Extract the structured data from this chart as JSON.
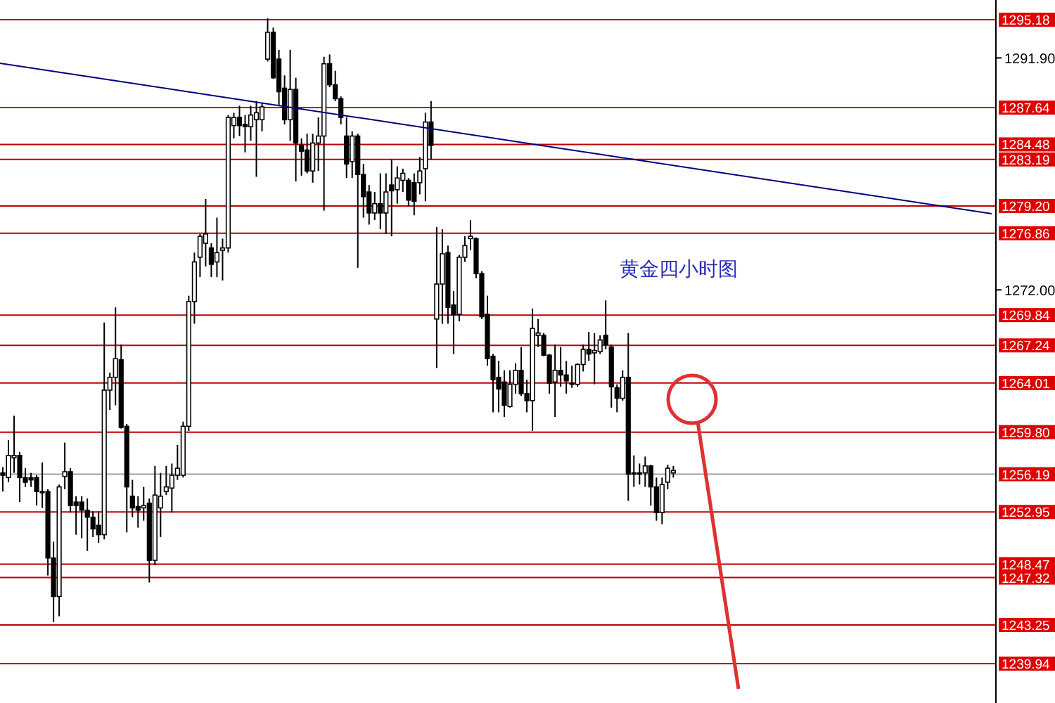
{
  "chart_data": {
    "type": "candlestick",
    "title": "黄金四小时图",
    "categories": [
      null,
      null,
      null,
      null,
      null,
      null,
      null,
      null,
      null,
      null,
      null,
      null,
      null,
      null,
      null,
      null,
      null,
      null,
      null,
      null,
      null,
      null,
      null,
      null,
      null,
      null,
      null,
      null,
      null,
      null,
      null,
      null,
      null,
      null,
      null,
      null,
      null,
      null,
      null,
      null,
      null,
      null,
      null,
      null,
      null,
      null,
      null,
      null,
      null,
      null,
      null,
      null,
      null,
      null,
      null,
      null,
      null,
      null,
      null,
      null,
      null,
      null,
      null,
      null,
      null,
      null,
      null,
      null,
      null,
      null,
      null,
      null,
      null,
      null,
      null,
      null,
      null,
      null,
      null,
      null,
      null,
      null,
      null,
      null,
      null,
      null,
      null,
      null,
      null,
      null,
      null,
      null,
      null,
      null,
      null,
      null,
      null,
      null,
      null,
      null,
      null,
      null,
      null,
      null,
      null,
      null,
      null,
      null,
      null,
      null,
      null,
      null,
      null,
      null,
      null,
      null,
      null,
      null,
      null,
      null,
      null,
      null,
      null,
      null,
      null,
      null,
      null,
      null,
      null,
      null,
      null,
      null,
      null,
      null,
      null,
      null,
      null,
      null,
      null,
      null,
      null,
      null,
      null,
      null,
      null,
      null,
      null,
      null,
      null,
      null,
      null,
      null,
      null,
      null,
      null,
      null,
      null,
      null,
      null,
      null,
      null,
      null,
      null,
      null,
      null,
      null,
      null,
      null,
      null,
      null,
      null,
      null,
      null,
      null,
      null,
      null
    ],
    "ohlc": [
      [
        1256.3,
        1256.8,
        1254.7,
        1256.1
      ],
      [
        1255.9,
        1259.1,
        1255.5,
        1257.8
      ],
      [
        1257.6,
        1261.2,
        1256.3,
        1257.8
      ],
      [
        1257.8,
        1258.1,
        1253.8,
        1255.9
      ],
      [
        1255.9,
        1256.7,
        1255.1,
        1255.5
      ],
      [
        1255.9,
        1256.3,
        1255.1,
        1255.7
      ],
      [
        1255.9,
        1256.1,
        1253.5,
        1254.7
      ],
      [
        1254.7,
        1257.2,
        1253.3,
        1254.6
      ],
      [
        1254.7,
        1254.9,
        1247.5,
        1249.0
      ],
      [
        1249.0,
        1250.4,
        1243.5,
        1245.7
      ],
      [
        1245.7,
        1255.3,
        1244.0,
        1255.1
      ],
      [
        1256.0,
        1258.9,
        1254.9,
        1256.4
      ],
      [
        1256.4,
        1256.7,
        1252.9,
        1253.5
      ],
      [
        1253.8,
        1254.3,
        1251.0,
        1253.5
      ],
      [
        1253.8,
        1254.3,
        1250.7,
        1253.1
      ],
      [
        1253.1,
        1254.1,
        1249.6,
        1252.5
      ],
      [
        1252.5,
        1253.0,
        1250.8,
        1251.5
      ],
      [
        1251.8,
        1253.0,
        1250.3,
        1251.0
      ],
      [
        1251.0,
        1269.2,
        1250.6,
        1263.4
      ],
      [
        1263.4,
        1264.9,
        1261.7,
        1264.5
      ],
      [
        1264.5,
        1270.5,
        1262.1,
        1266.1
      ],
      [
        1266.0,
        1267.3,
        1260.1,
        1260.2
      ],
      [
        1260.3,
        1260.5,
        1251.2,
        1255.1
      ],
      [
        1254.3,
        1255.7,
        1252.5,
        1253.3
      ],
      [
        1253.4,
        1254.3,
        1251.6,
        1253.1
      ],
      [
        1253.3,
        1255.1,
        1252.2,
        1253.5
      ],
      [
        1253.7,
        1254.1,
        1246.9,
        1248.8
      ],
      [
        1248.8,
        1256.9,
        1248.4,
        1254.4
      ],
      [
        1253.3,
        1256.3,
        1250.8,
        1254.3
      ],
      [
        1254.7,
        1256.9,
        1254.4,
        1255.1
      ],
      [
        1255.0,
        1257.1,
        1252.9,
        1256.1
      ],
      [
        1256.1,
        1258.7,
        1255.7,
        1256.7
      ],
      [
        1256.1,
        1260.7,
        1255.9,
        1260.3
      ],
      [
        1260.3,
        1271.5,
        1259.9,
        1271.0
      ],
      [
        1271.0,
        1275.2,
        1269.1,
        1274.4
      ],
      [
        1274.8,
        1276.8,
        1273.1,
        1276.6
      ],
      [
        1276.0,
        1279.8,
        1274.0,
        1276.8
      ],
      [
        1275.6,
        1276.0,
        1273.1,
        1274.2
      ],
      [
        1274.4,
        1278.2,
        1273.1,
        1275.2
      ],
      [
        1275.4,
        1276.4,
        1272.8,
        1275.6
      ],
      [
        1275.6,
        1287.0,
        1275.2,
        1286.8
      ],
      [
        1286.1,
        1287.2,
        1285.0,
        1286.8
      ],
      [
        1286.8,
        1287.8,
        1285.2,
        1286.1
      ],
      [
        1286.2,
        1287.0,
        1283.8,
        1286.0
      ],
      [
        1286.0,
        1287.8,
        1284.8,
        1287.0
      ],
      [
        1286.6,
        1288.2,
        1281.7,
        1287.2
      ],
      [
        1286.6,
        1288.0,
        1285.6,
        1287.7
      ],
      [
        1291.8,
        1295.3,
        1291.6,
        1294.1
      ],
      [
        1294.1,
        1294.5,
        1290.1,
        1290.2
      ],
      [
        1291.8,
        1292.6,
        1287.8,
        1289.0
      ],
      [
        1289.3,
        1290.4,
        1286.2,
        1286.6
      ],
      [
        1286.6,
        1292.6,
        1284.8,
        1289.2
      ],
      [
        1289.2,
        1290.2,
        1281.3,
        1284.6
      ],
      [
        1284.4,
        1285.0,
        1281.8,
        1283.9
      ],
      [
        1284.0,
        1285.4,
        1282.0,
        1282.2
      ],
      [
        1282.2,
        1285.4,
        1281.2,
        1284.6
      ],
      [
        1284.6,
        1286.8,
        1282.2,
        1285.2
      ],
      [
        1285.2,
        1292.0,
        1278.8,
        1291.4
      ],
      [
        1291.4,
        1292.2,
        1289.4,
        1289.6
      ],
      [
        1289.6,
        1290.8,
        1288.2,
        1288.4
      ],
      [
        1288.4,
        1288.6,
        1286.2,
        1286.8
      ],
      [
        1285.2,
        1286.8,
        1281.6,
        1282.8
      ],
      [
        1283.0,
        1285.6,
        1281.6,
        1285.2
      ],
      [
        1285.2,
        1285.4,
        1273.9,
        1281.9
      ],
      [
        1281.9,
        1282.8,
        1278.2,
        1280.0
      ],
      [
        1280.4,
        1281.0,
        1277.6,
        1278.6
      ],
      [
        1278.6,
        1280.4,
        1278.0,
        1279.4
      ],
      [
        1279.4,
        1282.0,
        1277.2,
        1278.6
      ],
      [
        1278.6,
        1282.0,
        1276.8,
        1280.4
      ],
      [
        1281.0,
        1283.2,
        1276.6,
        1280.5
      ],
      [
        1280.6,
        1282.6,
        1279.4,
        1281.6
      ],
      [
        1281.4,
        1282.4,
        1280.4,
        1282.0
      ],
      [
        1281.4,
        1281.6,
        1279.2,
        1279.7
      ],
      [
        1281.2,
        1282.0,
        1278.4,
        1279.6
      ],
      [
        1281.2,
        1283.4,
        1280.2,
        1282.2
      ],
      [
        1282.4,
        1287.2,
        1279.6,
        1286.4
      ],
      [
        1286.4,
        1288.2,
        1283.2,
        1284.4
      ],
      [
        1269.5,
        1277.4,
        1265.3,
        1272.5
      ],
      [
        1272.5,
        1277.2,
        1269.1,
        1275.1
      ],
      [
        1275.2,
        1275.8,
        1269.1,
        1270.5
      ],
      [
        1270.7,
        1271.9,
        1266.5,
        1269.9
      ],
      [
        1269.9,
        1275.0,
        1269.3,
        1274.8
      ],
      [
        1274.8,
        1276.6,
        1274.4,
        1275.8
      ],
      [
        1276.4,
        1278.0,
        1275.4,
        1276.6
      ],
      [
        1276.4,
        1276.5,
        1273.0,
        1273.4
      ],
      [
        1273.4,
        1273.6,
        1269.5,
        1269.7
      ],
      [
        1269.9,
        1271.5,
        1265.5,
        1266.1
      ],
      [
        1266.3,
        1266.5,
        1261.5,
        1264.3
      ],
      [
        1264.5,
        1265.9,
        1261.5,
        1263.5
      ],
      [
        1264.1,
        1265.1,
        1261.1,
        1262.1
      ],
      [
        1262.0,
        1265.1,
        1261.9,
        1263.9
      ],
      [
        1263.9,
        1265.7,
        1263.1,
        1265.1
      ],
      [
        1265.1,
        1267.1,
        1262.9,
        1263.1
      ],
      [
        1263.1,
        1264.3,
        1261.5,
        1262.5
      ],
      [
        1262.5,
        1270.4,
        1259.9,
        1268.7
      ],
      [
        1268.1,
        1269.5,
        1267.1,
        1268.3
      ],
      [
        1268.1,
        1268.3,
        1266.3,
        1266.4
      ],
      [
        1266.4,
        1266.5,
        1263.1,
        1264.0
      ],
      [
        1264.1,
        1267.3,
        1261.1,
        1265.1
      ],
      [
        1265.1,
        1267.1,
        1263.7,
        1264.7
      ],
      [
        1264.7,
        1265.9,
        1263.1,
        1264.2
      ],
      [
        1263.9,
        1265.5,
        1263.6,
        1264.0
      ],
      [
        1263.9,
        1265.7,
        1263.7,
        1265.6
      ],
      [
        1265.6,
        1267.3,
        1265.0,
        1266.9
      ],
      [
        1266.9,
        1268.4,
        1265.9,
        1266.5
      ],
      [
        1266.6,
        1268.3,
        1263.9,
        1266.8
      ],
      [
        1266.7,
        1268.1,
        1266.5,
        1267.7
      ],
      [
        1268.1,
        1271.1,
        1266.9,
        1267.3
      ],
      [
        1267.1,
        1267.3,
        1261.9,
        1263.7
      ],
      [
        1263.6,
        1263.9,
        1261.5,
        1262.7
      ],
      [
        1262.7,
        1265.1,
        1262.5,
        1264.5
      ],
      [
        1264.5,
        1268.3,
        1253.9,
        1256.2
      ],
      [
        1256.2,
        1257.8,
        1255.1,
        1256.3
      ],
      [
        1256.3,
        1257.1,
        1255.3,
        1256.2
      ],
      [
        1256.3,
        1257.7,
        1255.1,
        1256.9
      ],
      [
        1256.9,
        1257.0,
        1253.5,
        1255.1
      ],
      [
        1255.1,
        1255.9,
        1252.2,
        1252.9
      ],
      [
        1252.9,
        1255.9,
        1251.9,
        1255.3
      ],
      [
        1255.5,
        1257.0,
        1254.9,
        1256.7
      ],
      [
        1256.3,
        1256.9,
        1255.9,
        1256.5
      ],
      null,
      null,
      null,
      null,
      null,
      null,
      null,
      null,
      null,
      null,
      null,
      null,
      null,
      null,
      null,
      null,
      null,
      null,
      null,
      null,
      null,
      null,
      null,
      null,
      null,
      null,
      null,
      null,
      null,
      null,
      null,
      null,
      null,
      null,
      null,
      null,
      null,
      null,
      null,
      null,
      null,
      null,
      null,
      null,
      null,
      null,
      null,
      null,
      null,
      null,
      null,
      null,
      null,
      null,
      null,
      null
    ],
    "ylim": [
      1236.56,
      1296.87
    ],
    "yticks": [
      {
        "value": 1291.9,
        "label": "1291.90"
      },
      {
        "value": 1272.0,
        "label": "1272.00"
      }
    ],
    "tick_labels": "y",
    "ref_lines": [
      {
        "axis": "y",
        "value": 1295.18,
        "label": "1295.18",
        "color": "#c00000"
      },
      {
        "axis": "y",
        "value": 1287.64,
        "label": "1287.64",
        "color": "#c00000"
      },
      {
        "axis": "y",
        "value": 1284.48,
        "label": "1284.48",
        "color": "#c00000"
      },
      {
        "axis": "y",
        "value": 1283.19,
        "label": "1283.19",
        "color": "#c00000"
      },
      {
        "axis": "y",
        "value": 1279.2,
        "label": "1279.20",
        "color": "#c00000"
      },
      {
        "axis": "y",
        "value": 1276.86,
        "label": "1276.86",
        "color": "#c00000"
      },
      {
        "axis": "y",
        "value": 1269.84,
        "label": "1269.84",
        "color": "#c00000"
      },
      {
        "axis": "y",
        "value": 1267.24,
        "label": "1267.24",
        "color": "#c00000"
      },
      {
        "axis": "y",
        "value": 1264.01,
        "label": "1264.01",
        "color": "#c00000"
      },
      {
        "axis": "y",
        "value": 1259.8,
        "label": "1259.80",
        "color": "#c00000"
      },
      {
        "axis": "y",
        "value": 1256.19,
        "label": "1256.19",
        "color": "#a0a0a0"
      },
      {
        "axis": "y",
        "value": 1252.95,
        "label": "1252.95",
        "color": "#c00000"
      },
      {
        "axis": "y",
        "value": 1248.47,
        "label": "1248.47",
        "color": "#c00000"
      },
      {
        "axis": "y",
        "value": 1247.32,
        "label": "1247.32",
        "color": "#c00000"
      },
      {
        "axis": "y",
        "value": 1243.25,
        "label": "1243.25",
        "color": "#c00000"
      },
      {
        "axis": "y",
        "value": 1239.94,
        "label": "1239.94",
        "color": "#c00000"
      }
    ]
  }
}
